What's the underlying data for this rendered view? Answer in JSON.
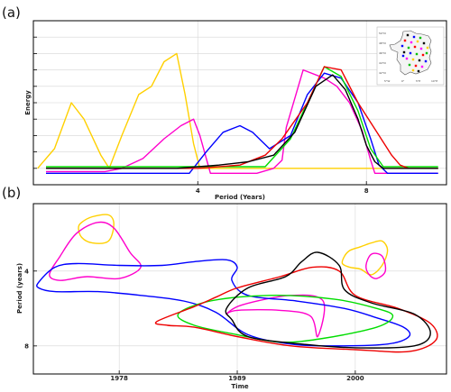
{
  "chart_data": [
    {
      "type": "line",
      "panel_label": "(a)",
      "xlabel": "Period (Years)",
      "ylabel": "Energy",
      "xticks": [
        4,
        8
      ],
      "xlim": [
        0.1,
        9.9
      ],
      "ylim": [
        0,
        1
      ],
      "grid": true,
      "inset": {
        "description": "map of France with colored station markers",
        "lat_labels": [
          "50°N",
          "48°N",
          "46°N",
          "44°N",
          "42°N"
        ],
        "lon_labels": [
          "5°W",
          "0°",
          "5°E",
          "10°E"
        ],
        "marker_colors": [
          "#000000",
          "#0000ff",
          "#00c000",
          "#ff0000",
          "#ff00ff",
          "#ffd000"
        ]
      },
      "series": [
        {
          "color": "#FFD000",
          "x": [
            0.2,
            0.6,
            1.0,
            1.3,
            1.7,
            1.9,
            2.2,
            2.6,
            2.9,
            3.2,
            3.5,
            3.7,
            3.9,
            4.05,
            9.7
          ],
          "y": [
            0.1,
            0.22,
            0.5,
            0.4,
            0.18,
            0.1,
            0.3,
            0.55,
            0.6,
            0.75,
            0.8,
            0.55,
            0.25,
            0.1,
            0.1
          ]
        },
        {
          "color": "#FF00CC",
          "x": [
            0.4,
            1.0,
            1.8,
            2.2,
            2.7,
            3.2,
            3.6,
            3.9,
            4.05,
            4.3,
            5.0,
            5.4,
            5.8,
            6.0,
            6.1,
            6.5,
            7.0,
            7.3,
            7.6,
            7.9,
            8.1,
            8.2,
            8.5,
            9.7
          ],
          "y": [
            0.08,
            0.08,
            0.08,
            0.1,
            0.16,
            0.28,
            0.36,
            0.4,
            0.3,
            0.07,
            0.07,
            0.07,
            0.1,
            0.15,
            0.35,
            0.7,
            0.65,
            0.6,
            0.5,
            0.33,
            0.15,
            0.07,
            0.07,
            0.07
          ]
        },
        {
          "color": "#0000FF",
          "x": [
            0.4,
            1.5,
            3.2,
            3.8,
            4.2,
            4.6,
            5.0,
            5.3,
            5.7,
            6.2,
            6.6,
            7.0,
            7.4,
            7.8,
            8.1,
            8.3,
            8.5,
            9.7
          ],
          "y": [
            0.07,
            0.07,
            0.07,
            0.07,
            0.2,
            0.32,
            0.36,
            0.32,
            0.22,
            0.3,
            0.55,
            0.68,
            0.65,
            0.5,
            0.28,
            0.12,
            0.07,
            0.07
          ]
        },
        {
          "color": "#00DD00",
          "x": [
            0.4,
            3.0,
            5.6,
            6.2,
            6.6,
            7.0,
            7.4,
            7.8,
            8.1,
            8.4,
            9.7
          ],
          "y": [
            0.11,
            0.11,
            0.11,
            0.28,
            0.5,
            0.72,
            0.66,
            0.45,
            0.22,
            0.11,
            0.11
          ]
        },
        {
          "color": "#EE0000",
          "x": [
            0.4,
            4.0,
            5.0,
            5.6,
            6.0,
            6.6,
            7.0,
            7.4,
            7.8,
            8.3,
            8.6,
            8.8,
            9.0,
            9.7
          ],
          "y": [
            0.1,
            0.1,
            0.12,
            0.18,
            0.28,
            0.5,
            0.72,
            0.7,
            0.5,
            0.3,
            0.18,
            0.12,
            0.1,
            0.1
          ]
        },
        {
          "color": "#000000",
          "x": [
            0.4,
            3.5,
            4.5,
            5.2,
            5.8,
            6.3,
            6.8,
            7.2,
            7.5,
            7.8,
            8.0,
            8.2,
            8.4,
            9.7
          ],
          "y": [
            0.1,
            0.1,
            0.12,
            0.14,
            0.18,
            0.32,
            0.6,
            0.67,
            0.58,
            0.4,
            0.24,
            0.14,
            0.1,
            0.1
          ]
        }
      ]
    },
    {
      "type": "contour",
      "panel_label": "(b)",
      "xlabel": "Time",
      "ylabel": "Period (years)",
      "xticks": [
        1978,
        1989,
        2000
      ],
      "yticks": [
        4,
        8
      ],
      "xlim": [
        1970,
        2008.5
      ],
      "ylim": [
        9.5,
        0.4
      ],
      "grid": true,
      "contours": [
        {
          "color": "#FFD000",
          "points": [
            [
              1974.5,
              1.4
            ],
            [
              1975.5,
              1.1
            ],
            [
              1977.0,
              1.0
            ],
            [
              1977.5,
              1.5
            ],
            [
              1977.0,
              2.4
            ],
            [
              1975.5,
              2.5
            ],
            [
              1974.5,
              2.2
            ],
            [
              1974.2,
              1.7
            ]
          ]
        },
        {
          "color": "#FFD000",
          "points": [
            [
              1999.0,
              3.2
            ],
            [
              1999.5,
              2.9
            ],
            [
              2000.5,
              2.7
            ],
            [
              2001.5,
              2.5
            ],
            [
              2002.5,
              2.4
            ],
            [
              2003.0,
              2.9
            ],
            [
              2002.5,
              3.7
            ],
            [
              2001.5,
              4.2
            ],
            [
              2000.5,
              3.9
            ],
            [
              1999.5,
              3.8
            ],
            [
              1998.8,
              3.6
            ]
          ]
        },
        {
          "color": "#FF00CC",
          "points": [
            [
              1971.5,
              4.2
            ],
            [
              1972.5,
              3.2
            ],
            [
              1974.0,
              2.0
            ],
            [
              1976.0,
              1.4
            ],
            [
              1977.5,
              1.7
            ],
            [
              1979.0,
              3.0
            ],
            [
              1980.0,
              3.8
            ],
            [
              1978.0,
              4.4
            ],
            [
              1975.0,
              4.3
            ],
            [
              1972.5,
              4.5
            ]
          ]
        },
        {
          "color": "#FF00CC",
          "points": [
            [
              2001.0,
              3.7
            ],
            [
              2001.5,
              3.1
            ],
            [
              2002.5,
              3.2
            ],
            [
              2002.8,
              4.0
            ],
            [
              2002.0,
              4.4
            ],
            [
              2001.3,
              4.2
            ]
          ]
        },
        {
          "color": "#FF00CC",
          "points": [
            [
              1988.0,
              6.3
            ],
            [
              1989.5,
              5.8
            ],
            [
              1994.0,
              5.3
            ],
            [
              1997.0,
              5.6
            ],
            [
              1996.5,
              7.5
            ],
            [
              1995.8,
              6.4
            ],
            [
              1993.0,
              6.1
            ],
            [
              1989.0,
              6.1
            ]
          ]
        },
        {
          "color": "#0000FF",
          "points": [
            [
              1970.5,
              4.6
            ],
            [
              1972.0,
              3.8
            ],
            [
              1974.0,
              3.6
            ],
            [
              1978.0,
              3.7
            ],
            [
              1982.0,
              3.7
            ],
            [
              1985.0,
              3.5
            ],
            [
              1988.0,
              3.4
            ],
            [
              1989.0,
              3.8
            ],
            [
              1988.5,
              4.5
            ],
            [
              1990.0,
              5.3
            ],
            [
              1994.5,
              5.6
            ],
            [
              1999.0,
              6.0
            ],
            [
              2002.0,
              6.5
            ],
            [
              2004.5,
              7.0
            ],
            [
              2005.0,
              7.5
            ],
            [
              2003.0,
              7.9
            ],
            [
              1998.0,
              8.0
            ],
            [
              1994.0,
              7.9
            ],
            [
              1990.0,
              7.4
            ],
            [
              1987.0,
              6.2
            ],
            [
              1984.0,
              5.6
            ],
            [
              1980.0,
              5.3
            ],
            [
              1976.0,
              5.1
            ],
            [
              1972.0,
              5.1
            ],
            [
              1970.5,
              4.9
            ]
          ]
        },
        {
          "color": "#00DD00",
          "points": [
            [
              1983.5,
              6.3
            ],
            [
              1986.5,
              5.6
            ],
            [
              1992.0,
              5.3
            ],
            [
              1998.0,
              5.5
            ],
            [
              2002.0,
              6.0
            ],
            [
              2003.5,
              6.4
            ],
            [
              2002.0,
              7.0
            ],
            [
              1997.0,
              7.6
            ],
            [
              1993.0,
              7.8
            ],
            [
              1989.0,
              7.4
            ],
            [
              1985.0,
              6.9
            ]
          ]
        },
        {
          "color": "#EE0000",
          "points": [
            [
              1981.5,
              6.7
            ],
            [
              1985.0,
              5.9
            ],
            [
              1987.0,
              5.4
            ],
            [
              1989.0,
              4.9
            ],
            [
              1993.0,
              4.3
            ],
            [
              1996.0,
              3.8
            ],
            [
              1998.5,
              4.0
            ],
            [
              2000.0,
              5.3
            ],
            [
              2004.0,
              6.0
            ],
            [
              2007.0,
              6.8
            ],
            [
              2007.5,
              7.7
            ],
            [
              2005.0,
              8.3
            ],
            [
              2000.0,
              8.2
            ],
            [
              1994.0,
              8.0
            ],
            [
              1989.0,
              7.5
            ],
            [
              1985.0,
              7.0
            ],
            [
              1982.5,
              6.9
            ]
          ]
        },
        {
          "color": "#000000",
          "points": [
            [
              1988.0,
              6.0
            ],
            [
              1990.0,
              4.9
            ],
            [
              1993.5,
              4.3
            ],
            [
              1995.0,
              3.5
            ],
            [
              1996.5,
              3.0
            ],
            [
              1998.5,
              3.7
            ],
            [
              1999.0,
              5.0
            ],
            [
              2001.5,
              5.7
            ],
            [
              2005.5,
              6.3
            ],
            [
              2007.0,
              7.3
            ],
            [
              2005.5,
              8.0
            ],
            [
              2000.0,
              8.1
            ],
            [
              1995.0,
              7.9
            ],
            [
              1990.0,
              7.5
            ],
            [
              1988.5,
              6.6
            ]
          ]
        }
      ]
    }
  ]
}
